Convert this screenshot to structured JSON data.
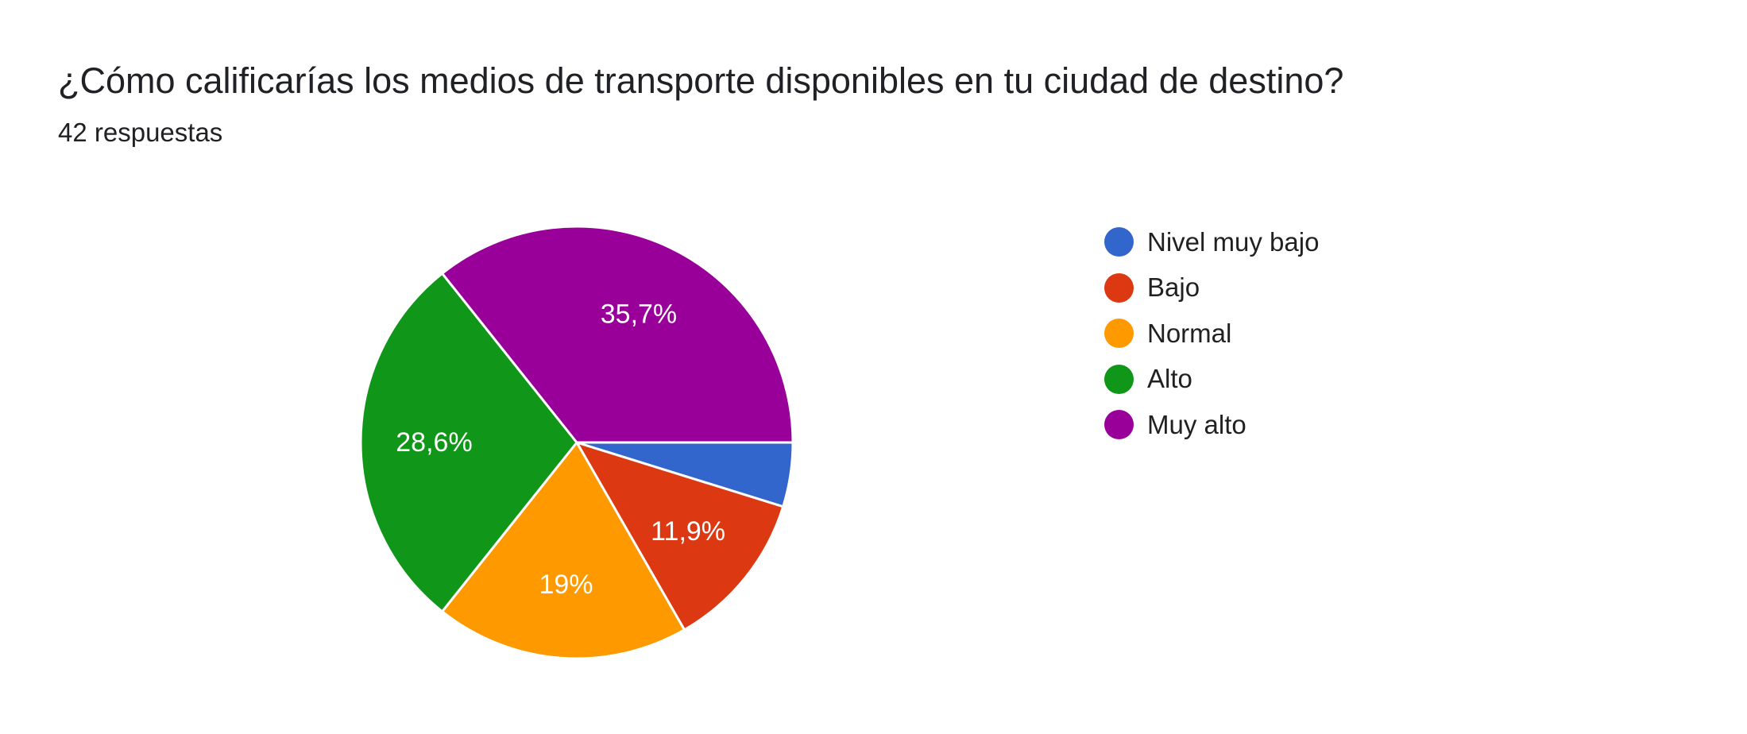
{
  "header": {
    "title": "¿Cómo calificarías los medios de transporte disponibles en tu ciudad de destino?",
    "responses": "42 respuestas"
  },
  "chart_data": {
    "type": "pie",
    "total_responses": 42,
    "slices": [
      {
        "label": "Nivel muy bajo",
        "percent": 4.8,
        "value_label": "",
        "color": "#3366cc"
      },
      {
        "label": "Bajo",
        "percent": 11.9,
        "value_label": "11,9%",
        "color": "#dc3912"
      },
      {
        "label": "Normal",
        "percent": 19.0,
        "value_label": "19%",
        "color": "#ff9900"
      },
      {
        "label": "Alto",
        "percent": 28.6,
        "value_label": "28,6%",
        "color": "#109618"
      },
      {
        "label": "Muy alto",
        "percent": 35.7,
        "value_label": "35,7%",
        "color": "#990099"
      }
    ],
    "start_angle": "3 o'clock",
    "direction": "clockwise",
    "legend_position": "right"
  }
}
